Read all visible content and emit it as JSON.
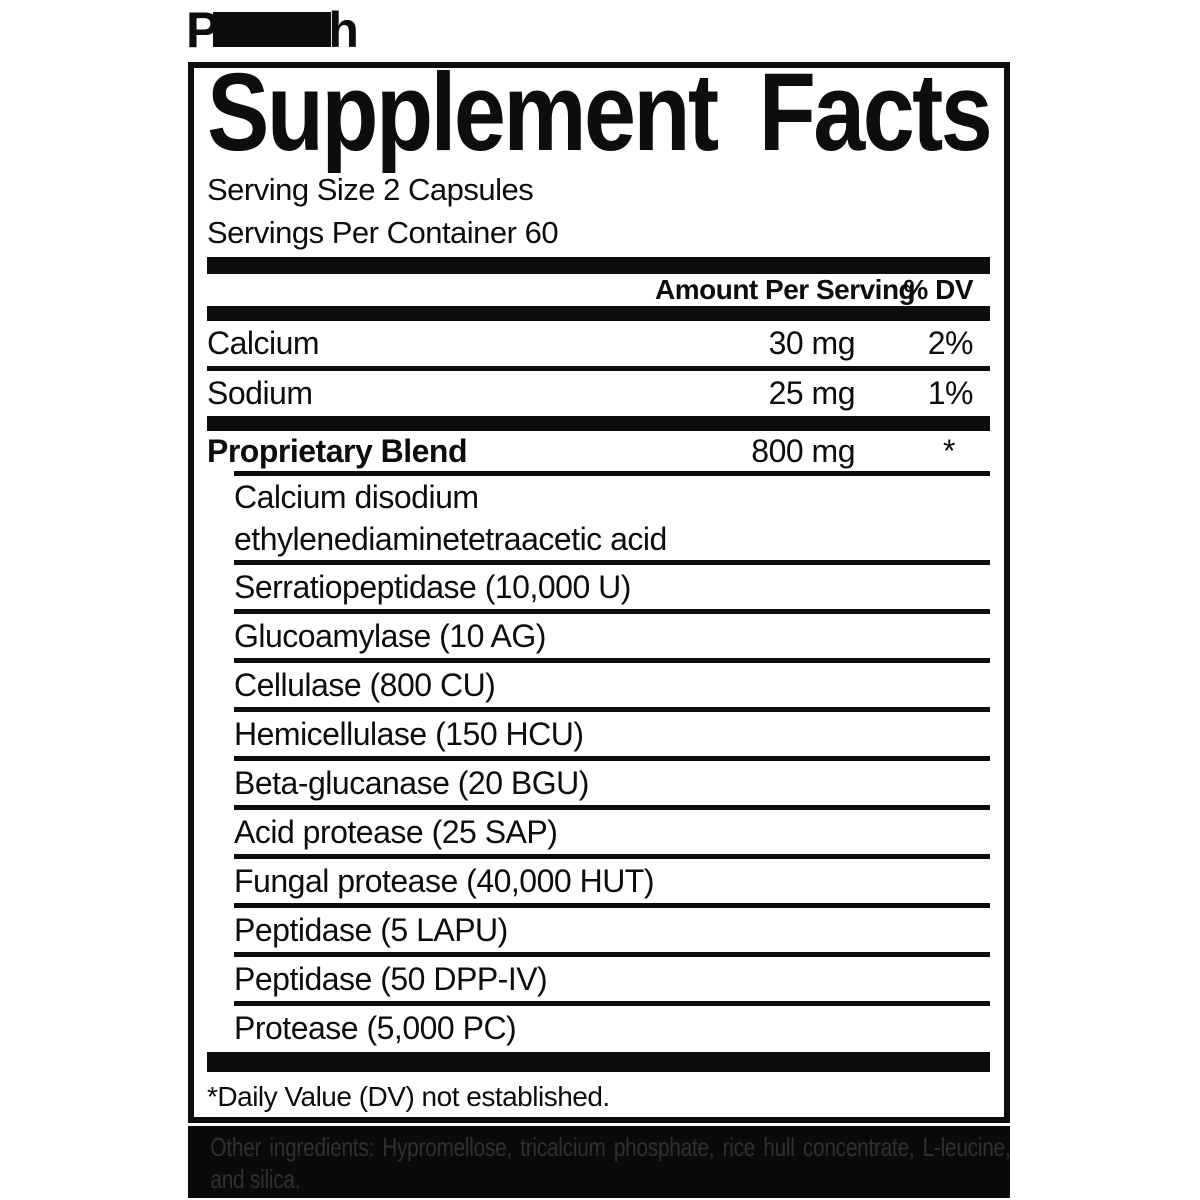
{
  "masked_product_name": {
    "visible_prefix": "P",
    "visible_suffix": "h"
  },
  "panel": {
    "title": "Supplement Facts",
    "serving_size": "Serving Size 2 Capsules",
    "servings_per_container": "Servings Per Container 60",
    "columns": {
      "amount": "Amount Per Serving",
      "dv": "% DV"
    },
    "nutrients": [
      {
        "name": "Calcium",
        "amount": "30 mg",
        "dv": "2%"
      },
      {
        "name": "Sodium",
        "amount": "25 mg",
        "dv": "1%"
      }
    ],
    "blend": {
      "name": "Proprietary Blend",
      "amount": "800 mg",
      "dv": "*",
      "ingredients": [
        "Calcium disodium\nethylenediaminetetraacetic acid",
        "Serratiopeptidase (10,000 U)",
        "Glucoamylase (10 AG)",
        "Cellulase (800 CU)",
        "Hemicellulase (150 HCU)",
        "Beta-glucanase (20 BGU)",
        "Acid protease (25 SAP)",
        "Fungal protease (40,000 HUT)",
        "Peptidase (5 LAPU)",
        "Peptidase (50 DPP-IV)",
        "Protease (5,000 PC)"
      ]
    },
    "footnote": "*Daily Value (DV) not established."
  },
  "other_ingredients": "Other ingredients: Hypromellose, tricalcium phosphate, rice hull concentrate, L-leucine, and silica.",
  "colors": {
    "ink": "#0d0d0d",
    "band_background": "#0a0a0a",
    "band_text": "#303030"
  }
}
